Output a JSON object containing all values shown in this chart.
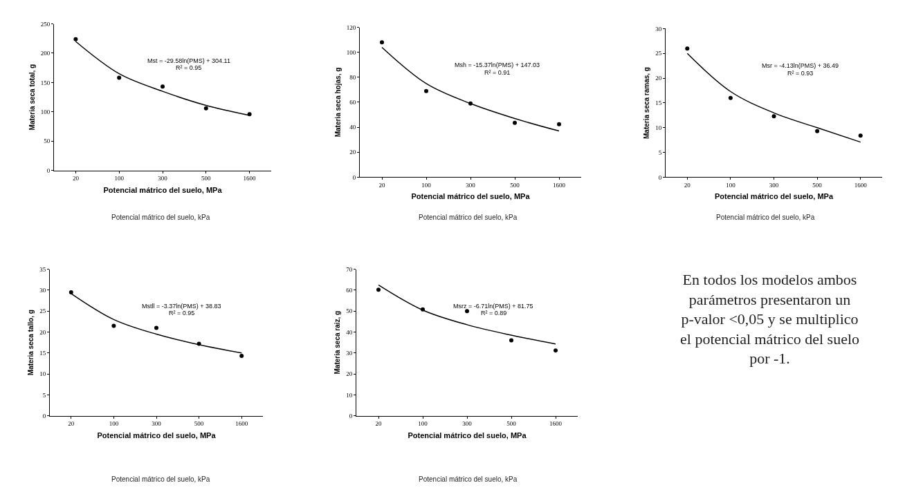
{
  "chart_data": [
    {
      "type": "scatter",
      "xlabel": "Potencial mátrico del suelo, MPa",
      "ylabel": "Materia seca total, g",
      "categories": [
        "20",
        "100",
        "300",
        "500",
        "1600"
      ],
      "ylim": [
        0,
        250
      ],
      "yticks": [
        0,
        50,
        100,
        150,
        200,
        250
      ],
      "series": [
        {
          "color": "#000000",
          "marker": "circle",
          "values": [
            224,
            158,
            143,
            106,
            96
          ]
        },
        {
          "type": "line",
          "color": "#000000",
          "marker": "none",
          "values": [
            220,
            165,
            135,
            111,
            94
          ]
        }
      ],
      "annotations": [
        "Mst = -29.58ln(PMS) + 304.11",
        "R² = 0.95",
        "Potencial mátrico del suelo, kPa"
      ]
    },
    {
      "type": "scatter",
      "xlabel": "Potencial mátrico del suelo, MPa",
      "ylabel": "Materia seca hojas, g",
      "categories": [
        "20",
        "100",
        "300",
        "500",
        "1600"
      ],
      "ylim": [
        0,
        120
      ],
      "yticks": [
        0,
        20,
        40,
        60,
        80,
        100,
        120
      ],
      "series": [
        {
          "color": "#000000",
          "marker": "circle",
          "values": [
            108,
            69,
            59,
            43.5,
            42.5
          ]
        },
        {
          "type": "line",
          "color": "#000000",
          "marker": "none",
          "values": [
            104,
            75,
            59,
            47,
            37
          ]
        }
      ],
      "annotations": [
        "Msh = -15.37ln(PMS) + 147.03",
        "R² = 0.91",
        "Potencial mátrico del suelo, kPa"
      ]
    },
    {
      "type": "scatter",
      "xlabel": "Potencial mátrico del suelo, MPa",
      "ylabel": "Materia seca ramas, g",
      "categories": [
        "20",
        "100",
        "300",
        "500",
        "1600"
      ],
      "ylim": [
        0,
        30
      ],
      "yticks": [
        0,
        5,
        10,
        15,
        20,
        25,
        30
      ],
      "series": [
        {
          "color": "#000000",
          "marker": "circle",
          "values": [
            26,
            16,
            12.3,
            9.3,
            8.4
          ]
        },
        {
          "type": "line",
          "color": "#000000",
          "marker": "none",
          "values": [
            25,
            17.3,
            13,
            10,
            7.1
          ]
        }
      ],
      "annotations": [
        "Msr = -4.13ln(PMS) + 36.49",
        "R² = 0.93",
        "Potencial mátrico del suelo, kPa"
      ]
    },
    {
      "type": "scatter",
      "xlabel": "Potencial mátrico del suelo, MPa",
      "ylabel": "Materia seca tallo, g",
      "categories": [
        "20",
        "100",
        "300",
        "500",
        "1600"
      ],
      "ylim": [
        0,
        35
      ],
      "yticks": [
        0,
        5,
        10,
        15,
        20,
        25,
        30,
        35
      ],
      "series": [
        {
          "color": "#000000",
          "marker": "circle",
          "values": [
            29.5,
            21.5,
            21,
            17.2,
            14.3
          ]
        },
        {
          "type": "line",
          "color": "#000000",
          "marker": "none",
          "values": [
            29.2,
            23,
            19.5,
            17,
            15
          ]
        }
      ],
      "annotations": [
        "Mstll = -3.37ln(PMS) + 38.83",
        "R² = 0.95",
        "Potencial mátrico del suelo, kPa"
      ]
    },
    {
      "type": "scatter",
      "xlabel": "Potencial mátrico del suelo, MPa",
      "ylabel": "Materia seca raiz, g",
      "categories": [
        "20",
        "100",
        "300",
        "500",
        "1600"
      ],
      "ylim": [
        0,
        70
      ],
      "yticks": [
        0,
        10,
        20,
        30,
        40,
        50,
        60,
        70
      ],
      "series": [
        {
          "color": "#000000",
          "marker": "circle",
          "values": [
            60.2,
            50.8,
            50,
            36,
            31.2
          ]
        },
        {
          "type": "line",
          "color": "#000000",
          "marker": "none",
          "values": [
            62.5,
            50.5,
            43.5,
            38.5,
            34.3
          ]
        }
      ],
      "annotations": [
        "Msrz = -6.71ln(PMS) + 81.75",
        "R² = 0.89",
        "Potencial mátrico del suelo, kPa"
      ]
    },
    {
      "type": "other",
      "annotations": [
        "En todos los modelos ambos parámetros presentaron un p-valor <0,05 y se multiplico el potencial mátrico del suelo por -1."
      ]
    }
  ]
}
